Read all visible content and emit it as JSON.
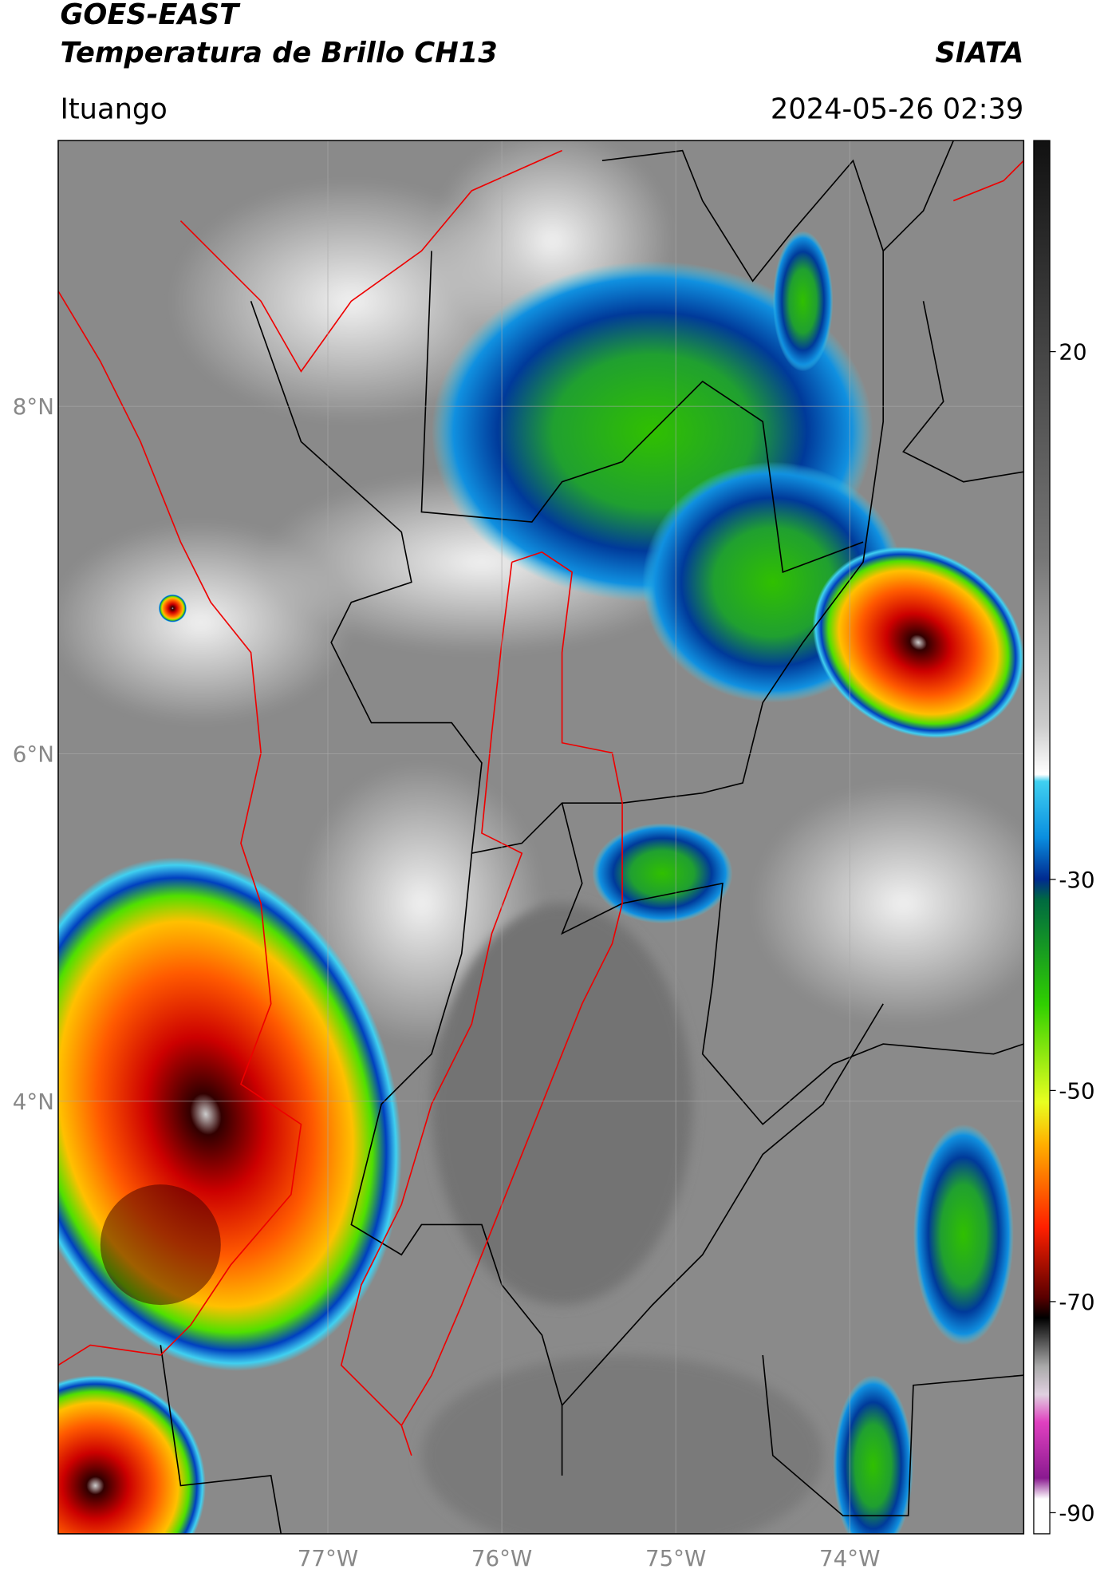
{
  "header": {
    "title": "GOES-EAST",
    "subtitle": "Temperatura de Brillo CH13",
    "source": "SIATA",
    "location": "Ituango",
    "timestamp": "2024-05-26 02:39"
  },
  "map": {
    "xlim": [
      -78.55,
      -73.0
    ],
    "ylim": [
      1.51,
      9.53
    ],
    "xticks": [
      {
        "value": -77,
        "label": "77°W"
      },
      {
        "value": -76,
        "label": "76°W"
      },
      {
        "value": -75,
        "label": "75°W"
      },
      {
        "value": -74,
        "label": "74°W"
      }
    ],
    "yticks": [
      {
        "value": 8,
        "label": "8°N"
      },
      {
        "value": 6,
        "label": "6°N"
      },
      {
        "value": 4,
        "label": "4°N"
      }
    ],
    "grid": true
  },
  "colorbar": {
    "lim": [
      -92,
      40
    ],
    "ticks": [
      20,
      -30,
      -50,
      -70,
      -90
    ]
  }
}
